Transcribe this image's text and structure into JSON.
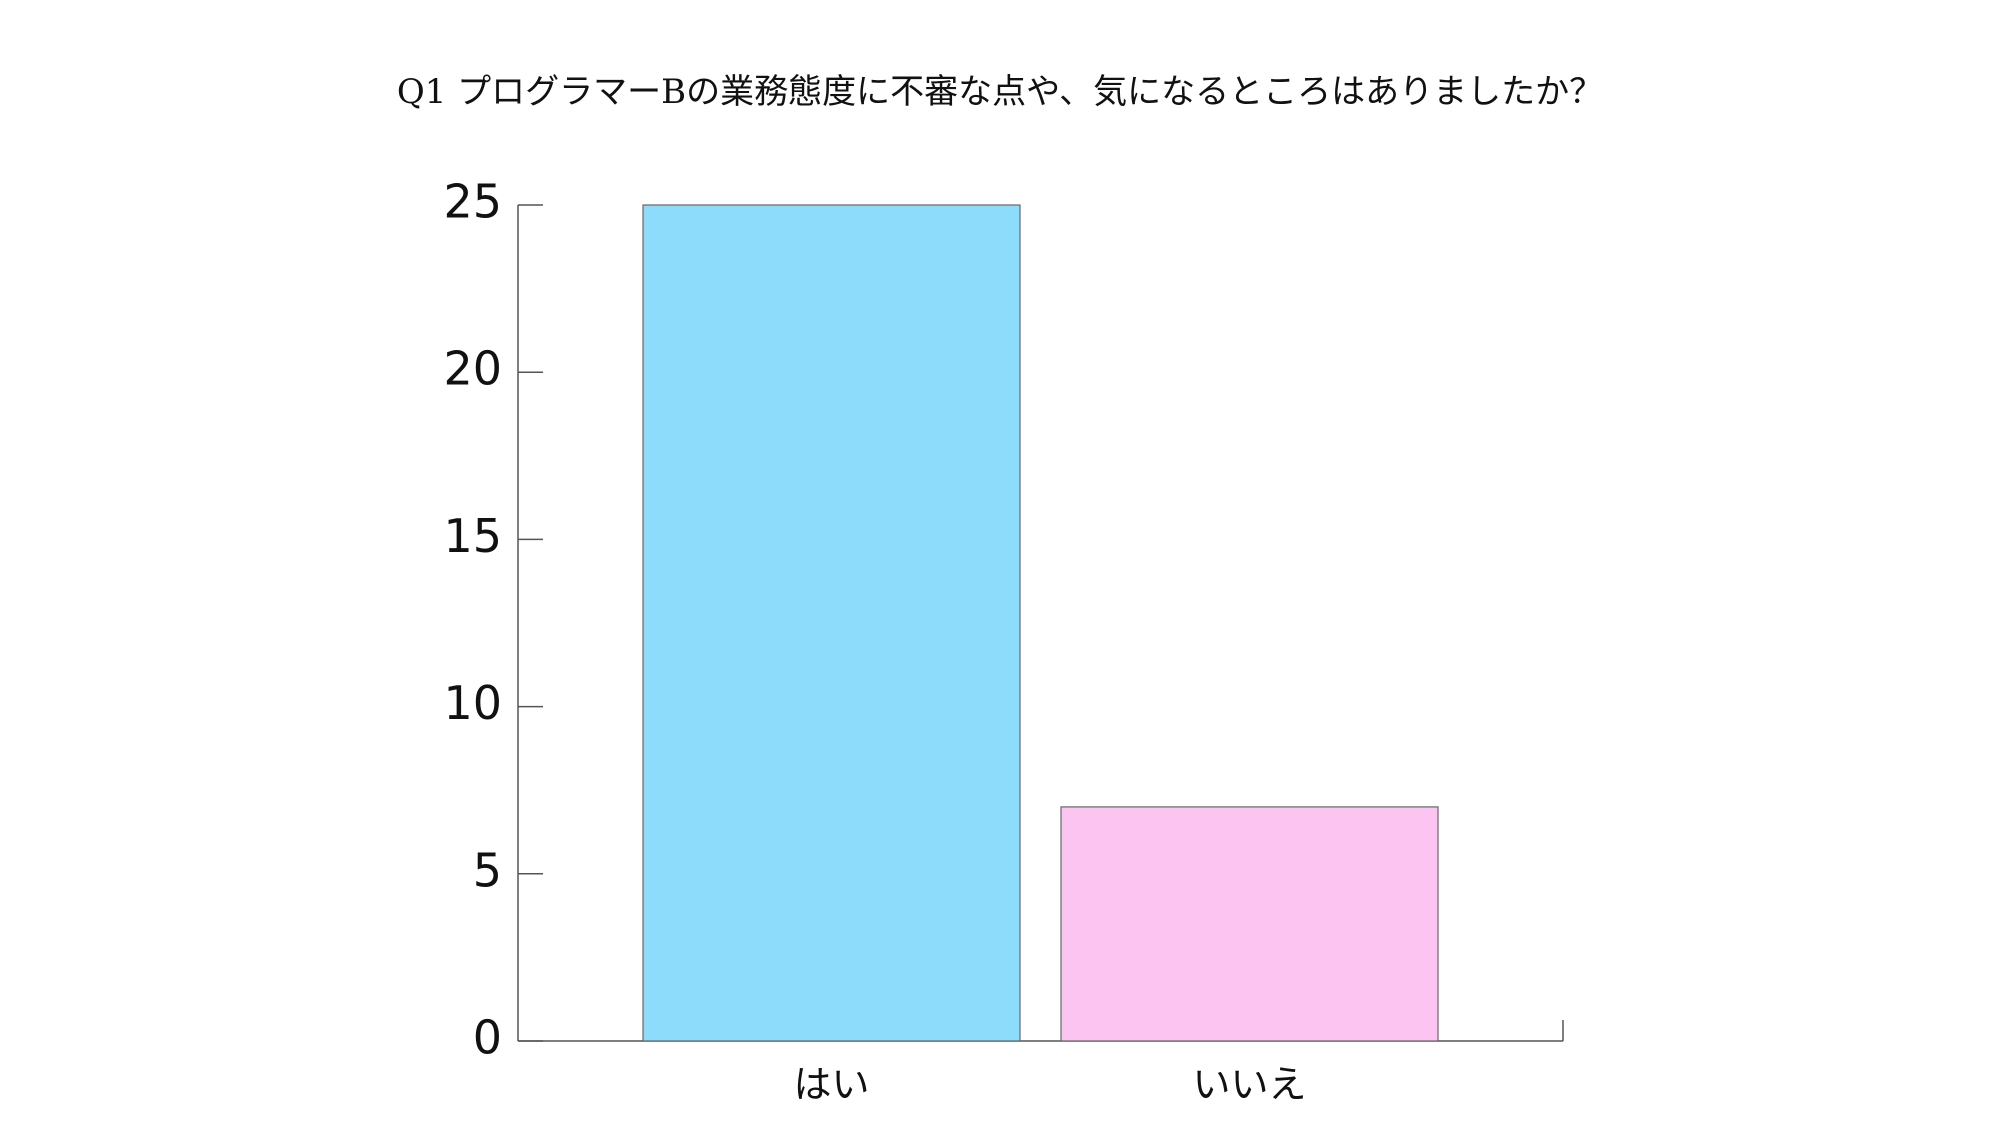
{
  "chart_data": {
    "type": "bar",
    "title": "Q1 プログラマーBの業務態度に不審な点や、気になるところはありましたか？",
    "categories": [
      "はい",
      "いいえ"
    ],
    "values": [
      25,
      7
    ],
    "colors": [
      "#8ddcfc",
      "#fcc4f0"
    ],
    "ylim": [
      0,
      25
    ],
    "yticks": [
      0,
      5,
      10,
      15,
      20,
      25
    ]
  }
}
